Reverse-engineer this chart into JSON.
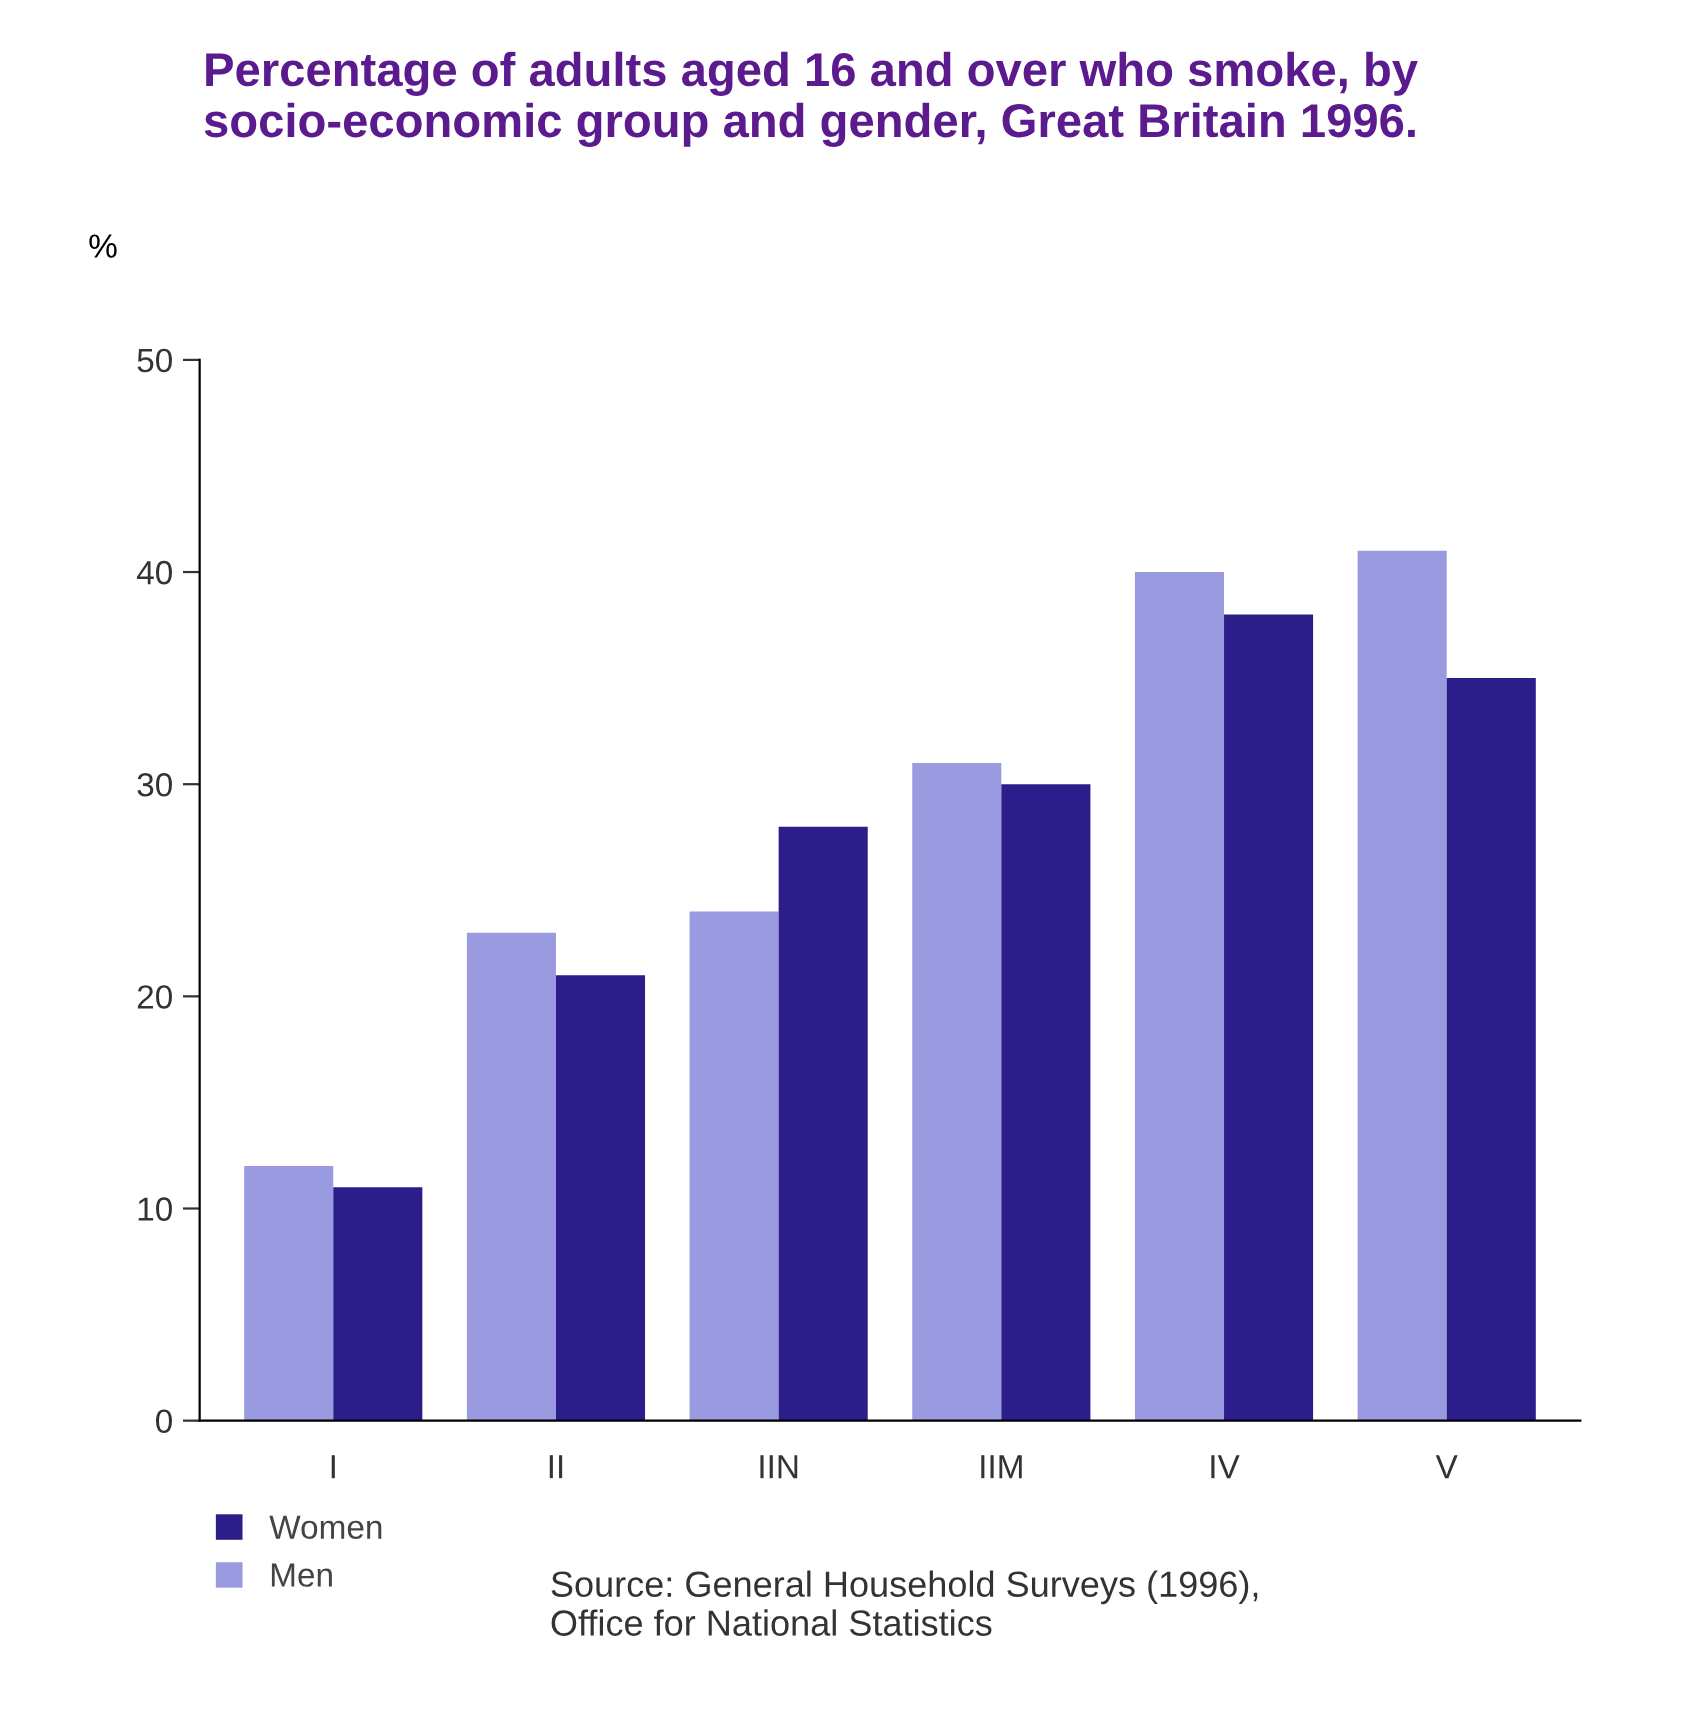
{
  "chart_data": {
    "type": "bar",
    "title": "Percentage of adults aged 16 and over who smoke, by socio-economic group and gender, Great Britain 1996.",
    "ylabel": "%",
    "categories": [
      "I",
      "II",
      "IIN",
      "IIM",
      "IV",
      "V"
    ],
    "series": [
      {
        "name": "Men",
        "color": "#9a9ae0",
        "values": [
          12,
          23,
          24,
          31,
          40,
          41
        ]
      },
      {
        "name": "Women",
        "color": "#2b1d8a",
        "values": [
          11,
          21,
          28,
          30,
          38,
          35
        ]
      }
    ],
    "ylim": [
      0,
      50
    ],
    "yticks": [
      0,
      10,
      20,
      30,
      40,
      50
    ],
    "grid": false,
    "legend": "bottom left",
    "annotations": [
      "Source: General Household Surveys (1996),\nOffice for National Statistics"
    ]
  }
}
